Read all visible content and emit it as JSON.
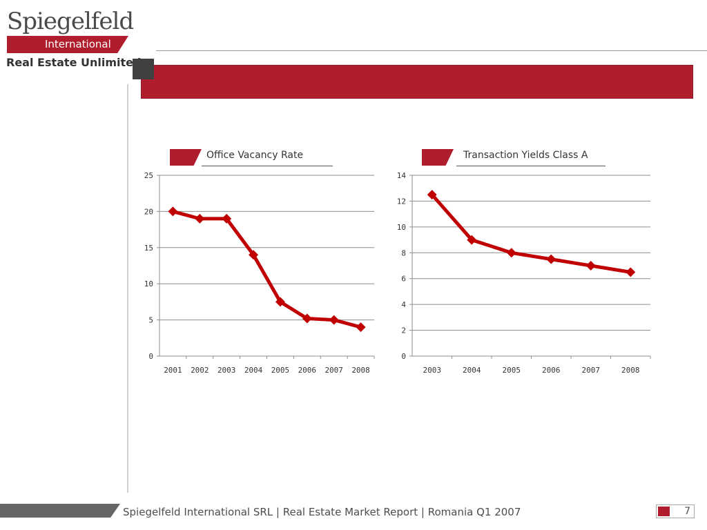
{
  "logo": {
    "name": "Spiegelfeld",
    "band": "International",
    "tagline": "Real Estate Unlimited"
  },
  "colors": {
    "brand_red": "#b01e2e",
    "series_red": "#c00000",
    "dark_gray": "#404040"
  },
  "footer": {
    "text": "Spiegelfeld International SRL | Real Estate Market Report | Romania Q1 2007",
    "page_number": "7"
  },
  "chart_data": [
    {
      "type": "line",
      "title": "Office Vacancy Rate",
      "categories": [
        "2001",
        "2002",
        "2003",
        "2004",
        "2005",
        "2006",
        "2007",
        "2008"
      ],
      "series": [
        {
          "values": [
            20,
            19,
            19,
            14,
            7.5,
            5.2,
            5,
            4
          ],
          "color": "#c00000",
          "marker": "diamond"
        }
      ],
      "ylim": [
        0,
        25
      ],
      "yticks": [
        0,
        5,
        10,
        15,
        20,
        25
      ],
      "grid": true,
      "legend": "none"
    },
    {
      "type": "line",
      "title": "Transaction Yields Class A",
      "categories": [
        "2003",
        "2004",
        "2005",
        "2006",
        "2007",
        "2008"
      ],
      "series": [
        {
          "values": [
            12.5,
            9,
            8,
            7.5,
            7,
            6.5
          ],
          "color": "#c00000",
          "marker": "diamond"
        }
      ],
      "ylim": [
        0,
        14
      ],
      "yticks": [
        0,
        2,
        4,
        6,
        8,
        10,
        12,
        14
      ],
      "grid": true,
      "legend": "none"
    }
  ]
}
